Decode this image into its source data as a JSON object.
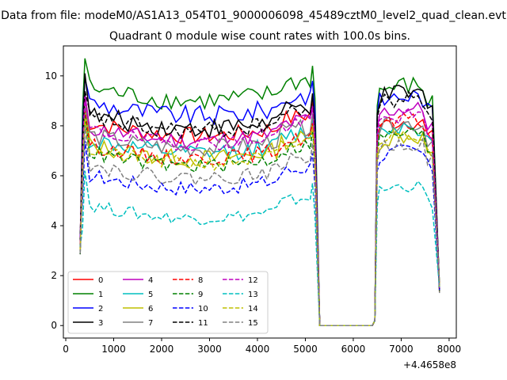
{
  "chart_data": {
    "type": "line",
    "suptitle": "Data from file: modeM0/AS1A13_054T01_9000006098_45489cztM0_level2_quad_clean.evt",
    "title": "Quadrant 0 module wise count rates with 100.0s bins.",
    "xlabel": "",
    "ylabel": "",
    "offset_text": "+4.4658e8",
    "xlim": [
      -50,
      8150
    ],
    "ylim": [
      -0.5,
      11.2
    ],
    "x_ticks": [
      0,
      1000,
      2000,
      3000,
      4000,
      5000,
      6000,
      7000,
      8000
    ],
    "x_tick_labels": [
      "0",
      "1000",
      "2000",
      "3000",
      "4000",
      "5000",
      "6000",
      "7000",
      "8000"
    ],
    "y_ticks": [
      0,
      2,
      4,
      6,
      8,
      10
    ],
    "y_tick_labels": [
      "0",
      "2",
      "4",
      "6",
      "8",
      "10"
    ],
    "grid": false,
    "legend_location": "lower-left",
    "legend_columns": 4,
    "gap_x": [
      5300,
      6400
    ],
    "segment1_start": 300,
    "segment1_end": 5200,
    "segment2_start": 6450,
    "segment2_end": 7800,
    "series": [
      {
        "name": "0",
        "color": "#ff0000",
        "dash": "solid",
        "level1": 8.2,
        "level2": 7.9,
        "peak": 9.2,
        "noise": 0.35
      },
      {
        "name": "1",
        "color": "#008000",
        "dash": "solid",
        "level1": 9.6,
        "level2": 9.3,
        "peak": 10.7,
        "noise": 0.4
      },
      {
        "name": "2",
        "color": "#0000ff",
        "dash": "solid",
        "level1": 9.0,
        "level2": 8.9,
        "peak": 9.9,
        "noise": 0.4
      },
      {
        "name": "3",
        "color": "#000000",
        "dash": "solid",
        "level1": 8.5,
        "level2": 9.0,
        "peak": 10.1,
        "noise": 0.4
      },
      {
        "name": "4",
        "color": "#bf00bf",
        "dash": "solid",
        "level1": 8.0,
        "level2": 8.4,
        "peak": 9.3,
        "noise": 0.35
      },
      {
        "name": "5",
        "color": "#00bfbf",
        "dash": "solid",
        "level1": 7.5,
        "level2": 7.7,
        "peak": 8.8,
        "noise": 0.35
      },
      {
        "name": "6",
        "color": "#bfbf00",
        "dash": "solid",
        "level1": 7.3,
        "level2": 7.3,
        "peak": 8.7,
        "noise": 0.35
      },
      {
        "name": "7",
        "color": "#808080",
        "dash": "solid",
        "level1": 7.7,
        "level2": 7.8,
        "peak": 8.8,
        "noise": 0.35
      },
      {
        "name": "8",
        "color": "#ff0000",
        "dash": "dashed",
        "level1": 7.3,
        "level2": 7.9,
        "peak": 8.6,
        "noise": 0.3
      },
      {
        "name": "9",
        "color": "#008000",
        "dash": "dashed",
        "level1": 7.0,
        "level2": 7.4,
        "peak": 8.4,
        "noise": 0.3
      },
      {
        "name": "10",
        "color": "#0000ff",
        "dash": "dashed",
        "level1": 6.1,
        "level2": 6.7,
        "peak": 7.4,
        "noise": 0.3
      },
      {
        "name": "11",
        "color": "#000000",
        "dash": "dashed",
        "level1": 8.4,
        "level2": 8.8,
        "peak": 9.4,
        "noise": 0.35
      },
      {
        "name": "12",
        "color": "#bf00bf",
        "dash": "dashed",
        "level1": 7.9,
        "level2": 8.1,
        "peak": 9.0,
        "noise": 0.3
      },
      {
        "name": "13",
        "color": "#00bfbf",
        "dash": "dashed",
        "level1": 4.9,
        "level2": 5.3,
        "peak": 6.2,
        "noise": 0.25
      },
      {
        "name": "14",
        "color": "#bfbf00",
        "dash": "dashed",
        "level1": 7.1,
        "level2": 7.4,
        "peak": 8.3,
        "noise": 0.3
      },
      {
        "name": "15",
        "color": "#808080",
        "dash": "dashed",
        "level1": 6.5,
        "level2": 7.0,
        "peak": 8.0,
        "noise": 0.3
      }
    ]
  }
}
